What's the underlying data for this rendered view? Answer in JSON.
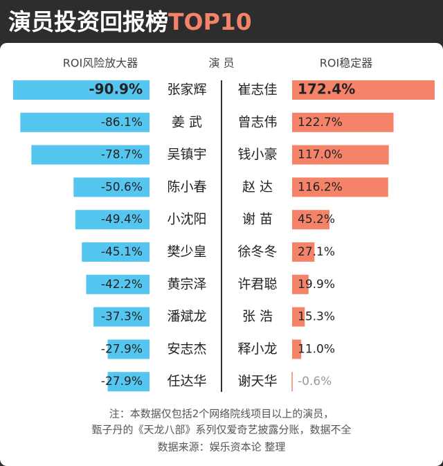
{
  "header": {
    "title": "演员投资回报榜",
    "title_highlight": "TOP10",
    "names_header": "演 员"
  },
  "chart_data": [
    {
      "type": "bar",
      "side": "left",
      "header": "ROI风险放大器",
      "color": "#55c6ef",
      "xlim": [
        0,
        -95
      ],
      "categories": [
        "张家辉",
        "姜 武",
        "吴镇宇",
        "陈小春",
        "小沈阳",
        "樊少皇",
        "黄宗泽",
        "潘斌龙",
        "安志杰",
        "任达华"
      ],
      "values": [
        -90.9,
        -86.1,
        -78.7,
        -50.6,
        -49.4,
        -45.1,
        -42.2,
        -37.3,
        -27.9,
        -27.9
      ],
      "value_labels": [
        "-90.9%",
        "-86.1%",
        "-78.7%",
        "-50.6%",
        "-49.4%",
        "-45.1%",
        "-42.2%",
        "-37.3%",
        "-27.9%",
        "-27.9%"
      ]
    },
    {
      "type": "bar",
      "side": "right",
      "header": "ROI稳定器",
      "color": "#f5836a",
      "xlim": [
        0,
        175
      ],
      "categories": [
        "崔志佳",
        "曾志伟",
        "钱小豪",
        "赵 达",
        "谢 苗",
        "徐冬冬",
        "许君聪",
        "张 浩",
        "释小龙",
        "谢天华"
      ],
      "values": [
        172.4,
        122.7,
        117.0,
        116.2,
        45.2,
        27.1,
        19.9,
        15.3,
        11.0,
        -0.6
      ],
      "value_labels": [
        "172.4%",
        "122.7%",
        "117.0%",
        "116.2%",
        "45.2%",
        "27.1%",
        "19.9%",
        "15.3%",
        "11.0%",
        "-0.6%"
      ]
    }
  ],
  "footer": {
    "notes": [
      "注：本数据仅包括2个网络院线项目以上的演员，",
      "甄子丹的《天龙八部》系列仅爱奇艺披露分账，数据不全",
      "数据来源：娱乐资本论 整理"
    ]
  }
}
